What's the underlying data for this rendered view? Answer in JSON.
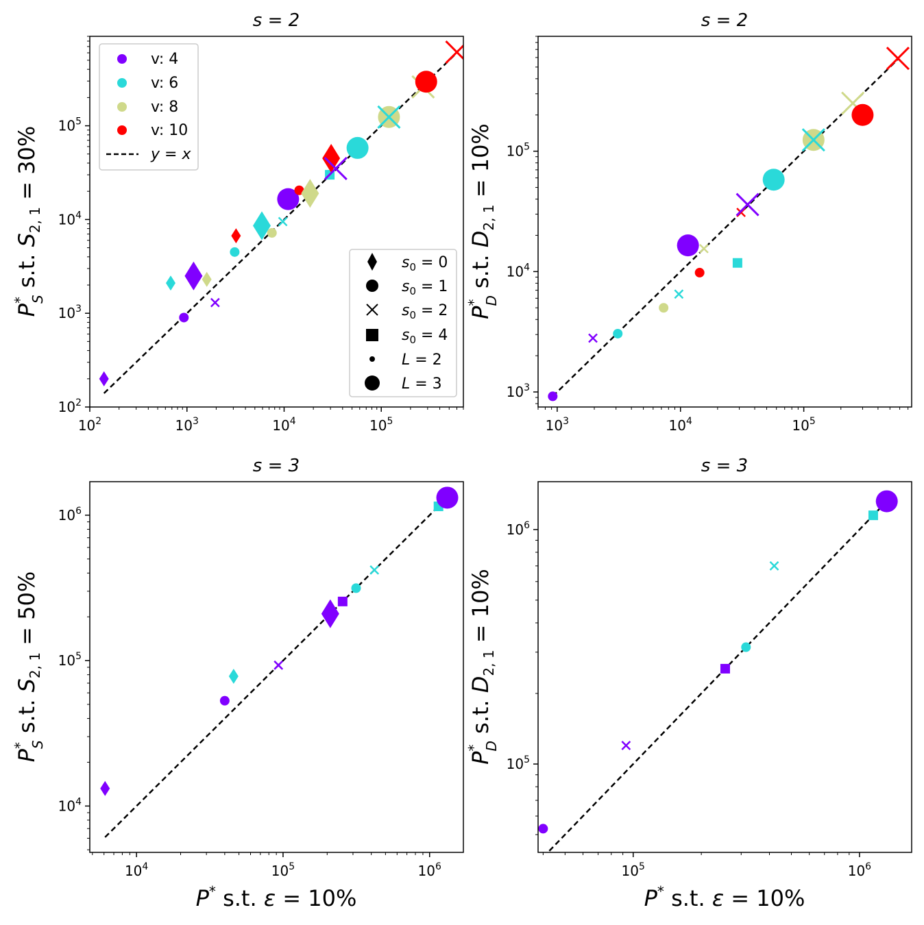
{
  "legend_v": [
    {
      "label": "v: 4",
      "color": "#8000ff"
    },
    {
      "label": "v: 6",
      "color": "#2ad9d9"
    },
    {
      "label": "v: 8",
      "color": "#cfd98a"
    },
    {
      "label": "v: 10",
      "color": "#ff0000"
    },
    {
      "label": "y = x",
      "color": "#000000"
    }
  ],
  "legend_marker": [
    "s0 = 0",
    "s0 = 1",
    "s0 = 2",
    "s0 = 4",
    "L = 2",
    "L = 3"
  ],
  "chart_data": [
    {
      "type": "scatter",
      "title": "s = 2",
      "xlabel": "",
      "ylabel": "P_S* s.t. S_2,1 = 30%",
      "xlim": [
        100,
        700000
      ],
      "ylim": [
        100,
        900000
      ],
      "xticks": [
        "10^2",
        "10^3",
        "10^4",
        "10^5"
      ],
      "yticks": [
        "10^2",
        "10^3",
        "10^4",
        "10^5"
      ],
      "legend": "top-left and bottom-right",
      "points": [
        {
          "x": 140,
          "y": 200,
          "v": 4,
          "s0": 0,
          "L": 2
        },
        {
          "x": 680,
          "y": 2100,
          "v": 6,
          "s0": 0,
          "L": 2
        },
        {
          "x": 1170,
          "y": 2500,
          "v": 4,
          "s0": 0,
          "L": 3
        },
        {
          "x": 1600,
          "y": 2300,
          "v": 8,
          "s0": 0,
          "L": 2
        },
        {
          "x": 930,
          "y": 900,
          "v": 4,
          "s0": 1,
          "L": 2
        },
        {
          "x": 1950,
          "y": 1300,
          "v": 4,
          "s0": 2,
          "L": 2
        },
        {
          "x": 3100,
          "y": 4500,
          "v": 6,
          "s0": 1,
          "L": 2
        },
        {
          "x": 3200,
          "y": 6700,
          "v": 10,
          "s0": 0,
          "L": 2
        },
        {
          "x": 5900,
          "y": 8600,
          "v": 6,
          "s0": 0,
          "L": 3
        },
        {
          "x": 7500,
          "y": 7200,
          "v": 8,
          "s0": 1,
          "L": 2
        },
        {
          "x": 9700,
          "y": 9500,
          "v": 6,
          "s0": 2,
          "L": 2
        },
        {
          "x": 11000,
          "y": 16500,
          "v": 4,
          "s0": 1,
          "L": 3
        },
        {
          "x": 14300,
          "y": 20500,
          "v": 10,
          "s0": 1,
          "L": 2
        },
        {
          "x": 18500,
          "y": 19000,
          "v": 8,
          "s0": 0,
          "L": 3
        },
        {
          "x": 29500,
          "y": 30000,
          "v": 6,
          "s0": 4,
          "L": 2
        },
        {
          "x": 30500,
          "y": 45000,
          "v": 10,
          "s0": 0,
          "L": 3
        },
        {
          "x": 34000,
          "y": 35000,
          "v": 4,
          "s0": 2,
          "L": 3
        },
        {
          "x": 57000,
          "y": 58000,
          "v": 6,
          "s0": 1,
          "L": 3
        },
        {
          "x": 120000,
          "y": 124000,
          "v": 8,
          "s0": 1,
          "L": 3
        },
        {
          "x": 120000,
          "y": 124000,
          "v": 6,
          "s0": 2,
          "L": 3
        },
        {
          "x": 270000,
          "y": 260000,
          "v": 8,
          "s0": 2,
          "L": 3
        },
        {
          "x": 290000,
          "y": 295000,
          "v": 10,
          "s0": 1,
          "L": 3
        },
        {
          "x": 600000,
          "y": 610000,
          "v": 10,
          "s0": 2,
          "L": 3
        }
      ]
    },
    {
      "type": "scatter",
      "title": "s = 2",
      "xlabel": "",
      "ylabel": "P_D* s.t. D_2,1 = 10%",
      "xlim": [
        700,
        750000
      ],
      "ylim": [
        750,
        900000
      ],
      "xticks": [
        "10^3",
        "10^4",
        "10^5"
      ],
      "yticks": [
        "10^3",
        "10^4",
        "10^5"
      ],
      "points": [
        {
          "x": 920,
          "y": 920,
          "v": 4,
          "s0": 1,
          "L": 2
        },
        {
          "x": 1950,
          "y": 2800,
          "v": 4,
          "s0": 2,
          "L": 2
        },
        {
          "x": 3100,
          "y": 3050,
          "v": 6,
          "s0": 1,
          "L": 2
        },
        {
          "x": 7300,
          "y": 5000,
          "v": 8,
          "s0": 1,
          "L": 2
        },
        {
          "x": 9700,
          "y": 6500,
          "v": 6,
          "s0": 2,
          "L": 2
        },
        {
          "x": 14300,
          "y": 9800,
          "v": 10,
          "s0": 1,
          "L": 2
        },
        {
          "x": 15500,
          "y": 15500,
          "v": 8,
          "s0": 2,
          "L": 2
        },
        {
          "x": 11500,
          "y": 16500,
          "v": 4,
          "s0": 1,
          "L": 3
        },
        {
          "x": 29000,
          "y": 11800,
          "v": 6,
          "s0": 4,
          "L": 2
        },
        {
          "x": 31000,
          "y": 31000,
          "v": 10,
          "s0": 2,
          "L": 2
        },
        {
          "x": 35000,
          "y": 36000,
          "v": 4,
          "s0": 2,
          "L": 3
        },
        {
          "x": 57000,
          "y": 58000,
          "v": 6,
          "s0": 1,
          "L": 3
        },
        {
          "x": 120000,
          "y": 124000,
          "v": 8,
          "s0": 1,
          "L": 3
        },
        {
          "x": 120000,
          "y": 124000,
          "v": 6,
          "s0": 2,
          "L": 3
        },
        {
          "x": 250000,
          "y": 250000,
          "v": 8,
          "s0": 2,
          "L": 3
        },
        {
          "x": 300000,
          "y": 200000,
          "v": 10,
          "s0": 1,
          "L": 3
        },
        {
          "x": 580000,
          "y": 590000,
          "v": 10,
          "s0": 2,
          "L": 3
        }
      ]
    },
    {
      "type": "scatter",
      "title": "s = 3",
      "xlabel": "P* s.t. ε = 10%",
      "ylabel": "P_S* s.t. S_2,1 = 50%",
      "xlim": [
        4800,
        1700000
      ],
      "ylim": [
        4800,
        1700000
      ],
      "xticks": [
        "10^4",
        "10^5",
        "10^6"
      ],
      "yticks": [
        "10^4",
        "10^5",
        "10^6"
      ],
      "points": [
        {
          "x": 6100,
          "y": 13200,
          "v": 4,
          "s0": 0,
          "L": 2
        },
        {
          "x": 40000,
          "y": 53000,
          "v": 4,
          "s0": 1,
          "L": 2
        },
        {
          "x": 46000,
          "y": 78000,
          "v": 6,
          "s0": 0,
          "L": 2
        },
        {
          "x": 93000,
          "y": 93000,
          "v": 4,
          "s0": 2,
          "L": 2
        },
        {
          "x": 210000,
          "y": 210000,
          "v": 4,
          "s0": 0,
          "L": 3
        },
        {
          "x": 255000,
          "y": 255000,
          "v": 4,
          "s0": 4,
          "L": 2
        },
        {
          "x": 315000,
          "y": 315000,
          "v": 6,
          "s0": 1,
          "L": 2
        },
        {
          "x": 420000,
          "y": 420000,
          "v": 6,
          "s0": 2,
          "L": 2
        },
        {
          "x": 1150000,
          "y": 1150000,
          "v": 6,
          "s0": 4,
          "L": 2
        },
        {
          "x": 1320000,
          "y": 1320000,
          "v": 4,
          "s0": 1,
          "L": 3
        }
      ]
    },
    {
      "type": "scatter",
      "title": "s = 3",
      "xlabel": "P* s.t. ε = 10%",
      "ylabel": "P_D* s.t. D_2,1 = 10%",
      "xlim": [
        38000,
        1700000
      ],
      "ylim": [
        42000,
        1600000
      ],
      "xticks": [
        "10^5",
        "10^6"
      ],
      "yticks": [
        "10^5",
        "10^6"
      ],
      "points": [
        {
          "x": 40000,
          "y": 53000,
          "v": 4,
          "s0": 1,
          "L": 2
        },
        {
          "x": 93000,
          "y": 120000,
          "v": 4,
          "s0": 2,
          "L": 2
        },
        {
          "x": 255000,
          "y": 255000,
          "v": 4,
          "s0": 4,
          "L": 2
        },
        {
          "x": 315000,
          "y": 315000,
          "v": 6,
          "s0": 1,
          "L": 2
        },
        {
          "x": 420000,
          "y": 700000,
          "v": 6,
          "s0": 2,
          "L": 2
        },
        {
          "x": 1150000,
          "y": 1150000,
          "v": 6,
          "s0": 4,
          "L": 2
        },
        {
          "x": 1320000,
          "y": 1320000,
          "v": 4,
          "s0": 1,
          "L": 3
        }
      ]
    }
  ]
}
